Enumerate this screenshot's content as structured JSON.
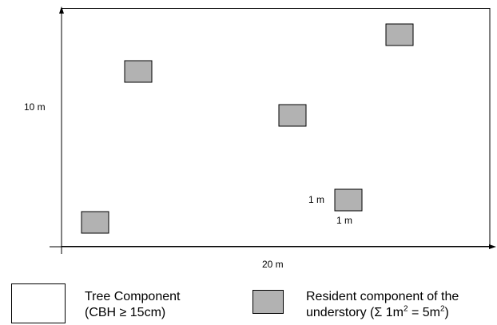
{
  "plot": {
    "width_label": "20 m",
    "height_label": "10 m"
  },
  "subplot": {
    "size_label_left": "1 m",
    "size_label_bottom": "1 m"
  },
  "legend": {
    "tree": {
      "line1": "Tree Component",
      "line2": "(CBH ≥ 15cm)"
    },
    "understory": {
      "line1": "Resident component of the",
      "line2_prefix": "understory (Σ 1m",
      "line2_sup1": "2",
      "line2_mid": " =  5m",
      "line2_sup2": "2",
      "line2_suffix": ")"
    }
  },
  "colors": {
    "plot_fill": "#ffffff",
    "subplot_fill": "#b2b2b2",
    "outline": "#000000"
  }
}
